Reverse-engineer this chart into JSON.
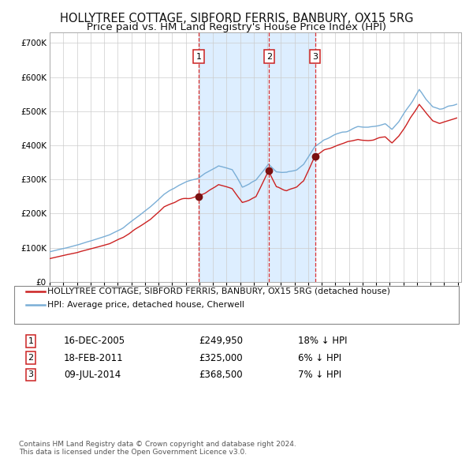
{
  "title": "HOLLYTREE COTTAGE, SIBFORD FERRIS, BANBURY, OX15 5RG",
  "subtitle": "Price paid vs. HM Land Registry's House Price Index (HPI)",
  "legend_property": "HOLLYTREE COTTAGE, SIBFORD FERRIS, BANBURY, OX15 5RG (detached house)",
  "legend_hpi": "HPI: Average price, detached house, Cherwell",
  "sale_dates": [
    "2005-12-16",
    "2011-02-18",
    "2014-07-09"
  ],
  "sale_prices": [
    249950,
    325000,
    368500
  ],
  "sale_labels": [
    "1",
    "2",
    "3"
  ],
  "sale_info": [
    {
      "label": "1",
      "date": "16-DEC-2005",
      "price": "£249,950",
      "hpi": "18% ↓ HPI"
    },
    {
      "label": "2",
      "date": "18-FEB-2011",
      "price": "£325,000",
      "hpi": "6% ↓ HPI"
    },
    {
      "label": "3",
      "date": "09-JUL-2014",
      "price": "£368,500",
      "hpi": "7% ↓ HPI"
    }
  ],
  "hpi_line_color": "#7aaed6",
  "property_line_color": "#cc2222",
  "sale_dot_color": "#7a1010",
  "vline_color": "#dd3333",
  "shade_color": "#ddeeff",
  "background_color": "#ffffff",
  "grid_color": "#cccccc",
  "title_fontsize": 10.5,
  "subtitle_fontsize": 9.5,
  "footnote": "Contains HM Land Registry data © Crown copyright and database right 2024.\nThis data is licensed under the Open Government Licence v3.0.",
  "ylim": [
    0,
    730000
  ],
  "yticks": [
    0,
    100000,
    200000,
    300000,
    400000,
    500000,
    600000,
    700000
  ],
  "ytick_labels": [
    "£0",
    "£100K",
    "£200K",
    "£300K",
    "£400K",
    "£500K",
    "£600K",
    "£700K"
  ]
}
